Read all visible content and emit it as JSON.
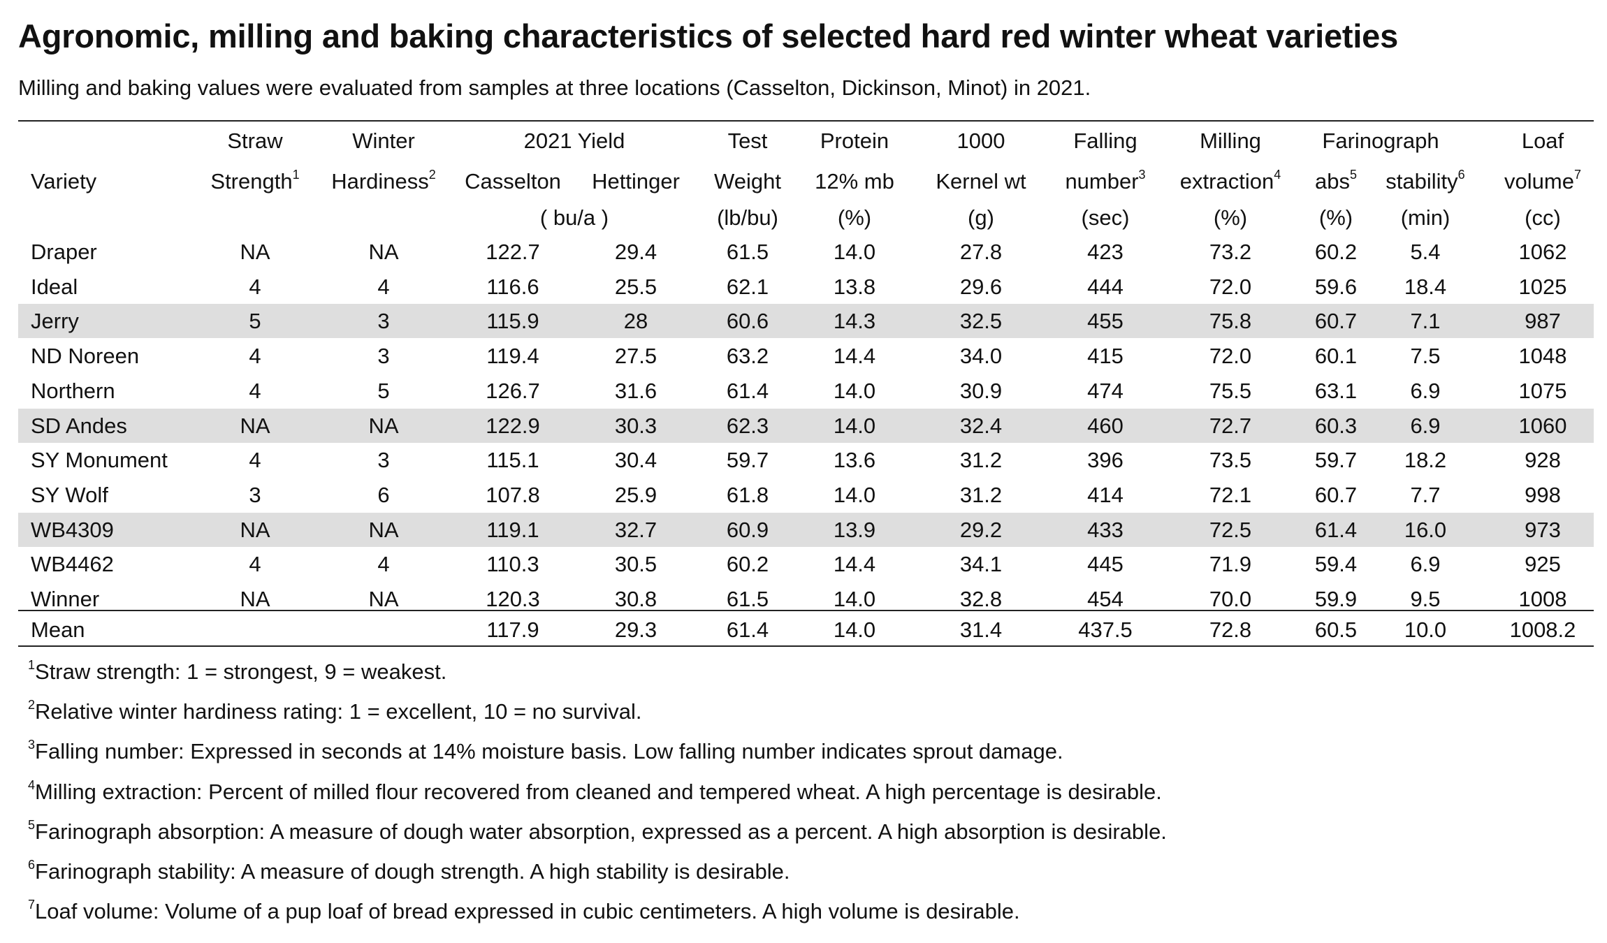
{
  "title": "Agronomic, milling and baking characteristics of selected hard red winter wheat varieties",
  "subtitle": "Milling and baking values were evaluated from samples at three locations (Casselton, Dickinson, Minot) in 2021.",
  "header": {
    "row1": [
      "",
      "Straw",
      "Winter",
      "2021  Yield",
      "Test",
      "Protein",
      "1000",
      "Falling",
      "Milling",
      "Farinograph",
      "Loaf"
    ],
    "row2": [
      {
        "text": "Variety",
        "sup": ""
      },
      {
        "text": "Strength",
        "sup": "1"
      },
      {
        "text": "Hardiness",
        "sup": "2"
      },
      {
        "text": "Casselton",
        "sup": ""
      },
      {
        "text": "Hettinger",
        "sup": ""
      },
      {
        "text": "Weight",
        "sup": ""
      },
      {
        "text": "12% mb",
        "sup": ""
      },
      {
        "text": "Kernel wt",
        "sup": ""
      },
      {
        "text": "number",
        "sup": "3"
      },
      {
        "text": "extraction",
        "sup": "4"
      },
      {
        "text": "abs",
        "sup": "5"
      },
      {
        "text": "stability",
        "sup": "6"
      },
      {
        "text": "volume",
        "sup": "7"
      }
    ],
    "units": [
      "",
      "",
      "",
      "( bu/a )",
      "",
      "(lb/bu)",
      "(%)",
      "(g)",
      "(sec)",
      "(%)",
      "(%)",
      "(min)",
      "(cc)"
    ]
  },
  "rows": [
    {
      "cells": [
        "Draper",
        "NA",
        "NA",
        "122.7",
        "29.4",
        "61.5",
        "14.0",
        "27.8",
        "423",
        "73.2",
        "60.2",
        "5.4",
        "1062"
      ],
      "shaded": false
    },
    {
      "cells": [
        "Ideal",
        "4",
        "4",
        "116.6",
        "25.5",
        "62.1",
        "13.8",
        "29.6",
        "444",
        "72.0",
        "59.6",
        "18.4",
        "1025"
      ],
      "shaded": false
    },
    {
      "cells": [
        "Jerry",
        "5",
        "3",
        "115.9",
        "28",
        "60.6",
        "14.3",
        "32.5",
        "455",
        "75.8",
        "60.7",
        "7.1",
        "987"
      ],
      "shaded": true
    },
    {
      "cells": [
        "ND Noreen",
        "4",
        "3",
        "119.4",
        "27.5",
        "63.2",
        "14.4",
        "34.0",
        "415",
        "72.0",
        "60.1",
        "7.5",
        "1048"
      ],
      "shaded": false
    },
    {
      "cells": [
        "Northern",
        "4",
        "5",
        "126.7",
        "31.6",
        "61.4",
        "14.0",
        "30.9",
        "474",
        "75.5",
        "63.1",
        "6.9",
        "1075"
      ],
      "shaded": false
    },
    {
      "cells": [
        "SD Andes",
        "NA",
        "NA",
        "122.9",
        "30.3",
        "62.3",
        "14.0",
        "32.4",
        "460",
        "72.7",
        "60.3",
        "6.9",
        "1060"
      ],
      "shaded": true
    },
    {
      "cells": [
        "SY Monument",
        "4",
        "3",
        "115.1",
        "30.4",
        "59.7",
        "13.6",
        "31.2",
        "396",
        "73.5",
        "59.7",
        "18.2",
        "928"
      ],
      "shaded": false
    },
    {
      "cells": [
        "SY Wolf",
        "3",
        "6",
        "107.8",
        "25.9",
        "61.8",
        "14.0",
        "31.2",
        "414",
        "72.1",
        "60.7",
        "7.7",
        "998"
      ],
      "shaded": false
    },
    {
      "cells": [
        "WB4309",
        "NA",
        "NA",
        "119.1",
        "32.7",
        "60.9",
        "13.9",
        "29.2",
        "433",
        "72.5",
        "61.4",
        "16.0",
        "973"
      ],
      "shaded": true
    },
    {
      "cells": [
        "WB4462",
        "4",
        "4",
        "110.3",
        "30.5",
        "60.2",
        "14.4",
        "34.1",
        "445",
        "71.9",
        "59.4",
        "6.9",
        "925"
      ],
      "shaded": false
    },
    {
      "cells": [
        "Winner",
        "NA",
        "NA",
        "120.3",
        "30.8",
        "61.5",
        "14.0",
        "32.8",
        "454",
        "70.0",
        "59.9",
        "9.5",
        "1008"
      ],
      "shaded": false
    }
  ],
  "mean_row": [
    "Mean",
    "",
    "",
    "117.9",
    "29.3",
    "61.4",
    "14.0",
    "31.4",
    "437.5",
    "72.8",
    "60.5",
    "10.0",
    "1008.2"
  ],
  "footnotes": [
    {
      "num": "1",
      "text": "Straw strength: 1 = strongest, 9 = weakest."
    },
    {
      "num": "2",
      "text": "Relative winter hardiness rating: 1 = excellent, 10 = no survival."
    },
    {
      "num": "3",
      "text": "Falling number: Expressed in seconds at 14% moisture basis. Low falling number indicates sprout damage."
    },
    {
      "num": "4",
      "text": "Milling extraction: Percent of milled flour recovered from cleaned and tempered wheat. A high percentage is desirable."
    },
    {
      "num": "5",
      "text": "Farinograph absorption: A measure of dough water absorption, expressed as a percent. A high absorption is desirable."
    },
    {
      "num": "6",
      "text": "Farinograph stability: A measure of dough strength. A high stability is desirable."
    },
    {
      "num": "7",
      "text": "Loaf volume: Volume of a pup loaf of bread expressed in cubic centimeters. A high volume is desirable."
    }
  ]
}
